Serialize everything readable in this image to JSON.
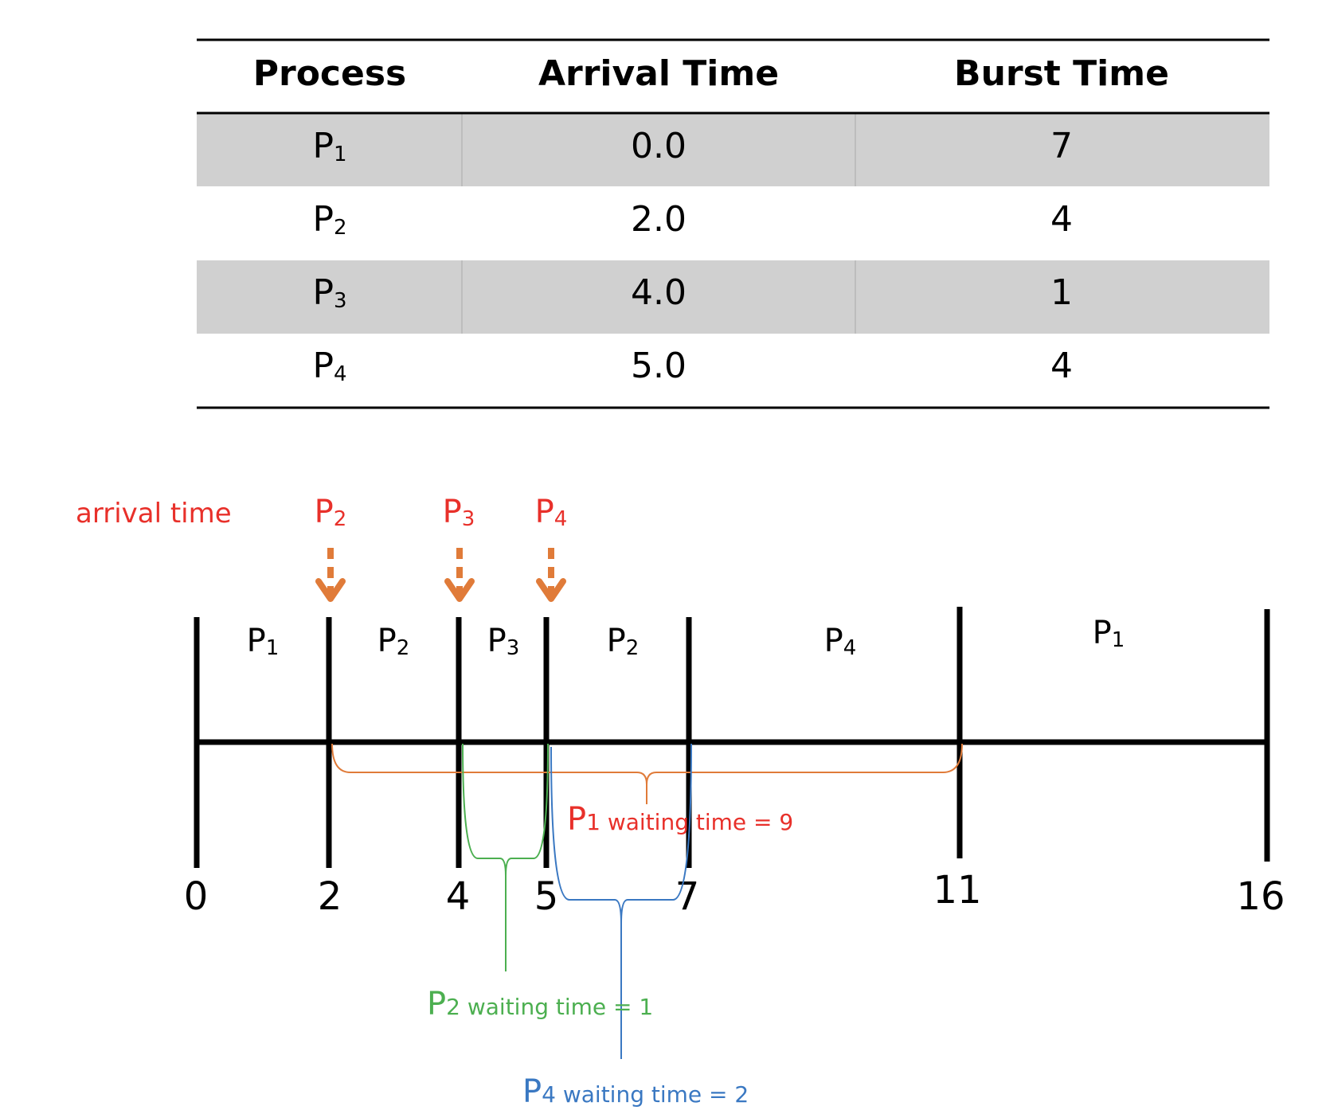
{
  "table": {
    "headers": [
      "Process",
      "Arrival Time",
      "Burst Time"
    ],
    "rows": [
      {
        "process": "P",
        "sub": "1",
        "arrival": "0.0",
        "burst": "7"
      },
      {
        "process": "P",
        "sub": "2",
        "arrival": "2.0",
        "burst": "4"
      },
      {
        "process": "P",
        "sub": "3",
        "arrival": "4.0",
        "burst": "1"
      },
      {
        "process": "P",
        "sub": "4",
        "arrival": "5.0",
        "burst": "4"
      }
    ],
    "shaded_row_color": "#d0d0d0"
  },
  "arrivals": {
    "title": "arrival time",
    "items": [
      {
        "p": "P",
        "sub": "2"
      },
      {
        "p": "P",
        "sub": "3"
      },
      {
        "p": "P",
        "sub": "4"
      }
    ],
    "label_color": "#e8302a",
    "arrow_color": "#e07b39"
  },
  "gantt": {
    "segments": [
      {
        "p": "P",
        "sub": "1",
        "start": 0,
        "end": 2
      },
      {
        "p": "P",
        "sub": "2",
        "start": 2,
        "end": 4
      },
      {
        "p": "P",
        "sub": "3",
        "start": 4,
        "end": 5
      },
      {
        "p": "P",
        "sub": "2",
        "start": 5,
        "end": 7
      },
      {
        "p": "P",
        "sub": "4",
        "start": 7,
        "end": 11
      },
      {
        "p": "P",
        "sub": "1",
        "start": 11,
        "end": 16
      }
    ],
    "ticks": [
      "0",
      "2",
      "4",
      "5",
      "7",
      "11",
      "16"
    ]
  },
  "waiting": [
    {
      "p": "P",
      "sub": "1",
      "text": " waiting time = 9",
      "color": "#e8302a",
      "brace_color": "#e07b39"
    },
    {
      "p": "P",
      "sub": "2",
      "text": " waiting time = 1",
      "color": "#4caf50",
      "brace_color": "#4caf50"
    },
    {
      "p": "P",
      "sub": "4",
      "text": " waiting time = 2",
      "color": "#3a78c2",
      "brace_color": "#3a78c2"
    }
  ]
}
